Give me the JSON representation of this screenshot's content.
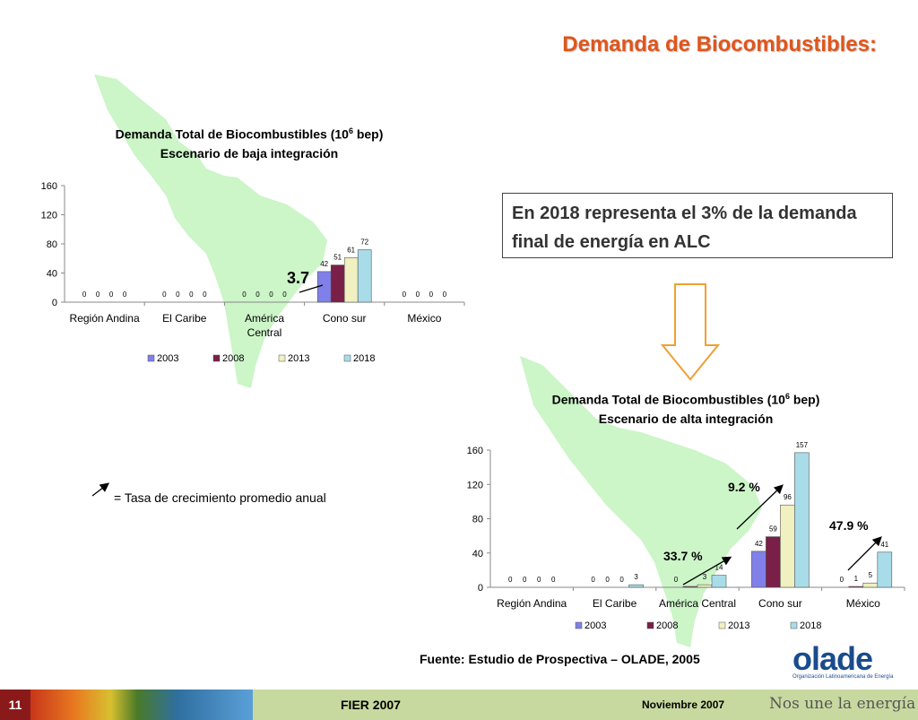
{
  "slide": {
    "title": "Demanda de Biocombustibles:",
    "callout": "En 2018 representa el 3% de la demanda final de energía en ALC",
    "growth_note": "= Tasa de crecimiento promedio anual",
    "source": "Fuente: Estudio de Prospectiva – OLADE, 2005",
    "low_growth_label": "3.7",
    "high_growth_labels": {
      "central": "33.7 %",
      "cono": "9.2 %",
      "mexico": "47.9 %"
    }
  },
  "footer": {
    "slide_number": "11",
    "event": "FIER 2007",
    "date": "Noviembre 2007",
    "slogan": "Nos une la energía"
  },
  "logo": {
    "name": "olade",
    "subtitle": "Organización Latinoamericana de Energía"
  },
  "colors": {
    "title": "#e0561b",
    "series": [
      "#8080e8",
      "#7a1f48",
      "#f0f0c0",
      "#a8dce8"
    ],
    "map": "#ccf5c8",
    "arrow": "#f0a030"
  },
  "chart_data": [
    {
      "type": "bar",
      "title_line1": "Demanda Total de Biocombustibles (10",
      "title_sup": "6",
      "title_line1_end": " bep)",
      "title_line2": "Escenario de baja integración",
      "categories": [
        "Región Andina",
        "El Caribe",
        "América Central",
        "Cono sur",
        "México"
      ],
      "series": [
        {
          "name": "2003",
          "values": [
            0,
            0,
            0,
            42,
            0
          ]
        },
        {
          "name": "2008",
          "values": [
            0,
            0,
            0,
            51,
            0
          ]
        },
        {
          "name": "2013",
          "values": [
            0,
            0,
            0,
            61,
            0
          ]
        },
        {
          "name": "2018",
          "values": [
            0,
            0,
            0,
            72,
            0
          ]
        }
      ],
      "yticks": [
        0,
        40,
        80,
        120,
        160
      ],
      "ylim": [
        0,
        160
      ],
      "legend": "bottom"
    },
    {
      "type": "bar",
      "title_line1": "Demanda Total de Biocombustibles (10",
      "title_sup": "6",
      "title_line1_end": " bep)",
      "title_line2": "Escenario de alta integración",
      "categories": [
        "Región Andina",
        "El Caribe",
        "América Central",
        "Cono sur",
        "México"
      ],
      "series": [
        {
          "name": "2003",
          "values": [
            0,
            0,
            0,
            42,
            0
          ]
        },
        {
          "name": "2008",
          "values": [
            0,
            0,
            1,
            59,
            1
          ]
        },
        {
          "name": "2013",
          "values": [
            0,
            0,
            3,
            96,
            5
          ]
        },
        {
          "name": "2018",
          "values": [
            0,
            3,
            14,
            157,
            41
          ]
        }
      ],
      "value_labels": [
        [
          "0",
          "0",
          "0",
          "42",
          "0"
        ],
        [
          "0",
          "0",
          "",
          "59",
          "1"
        ],
        [
          "0",
          "0",
          "3",
          "96",
          "5"
        ],
        [
          "0",
          "3",
          "14",
          "157",
          "41"
        ]
      ],
      "yticks": [
        0,
        40,
        80,
        120,
        160
      ],
      "ylim": [
        0,
        160
      ],
      "legend": "bottom"
    }
  ]
}
